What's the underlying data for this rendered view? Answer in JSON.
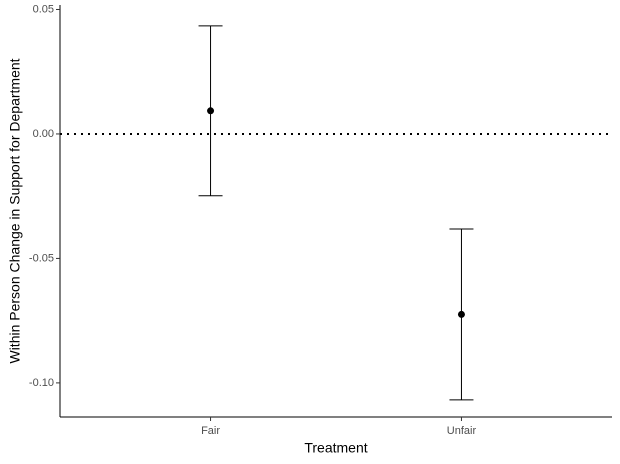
{
  "chart_data": {
    "type": "pointrange",
    "x_label": "Treatment",
    "y_label": "Within Person Change in Support for Department",
    "categories": [
      "Fair",
      "Unfair"
    ],
    "values": [
      0.0093,
      -0.0725
    ],
    "errors": [
      0.0341,
      0.0343
    ],
    "color": "#000000",
    "ylim": [
      -0.1137,
      0.0518
    ],
    "yticks": [
      {
        "value": -0.1,
        "label": "-0.10"
      },
      -0.05,
      {
        "value": 0,
        "label": "0.00"
      },
      0.05
    ],
    "hline": 0
  }
}
